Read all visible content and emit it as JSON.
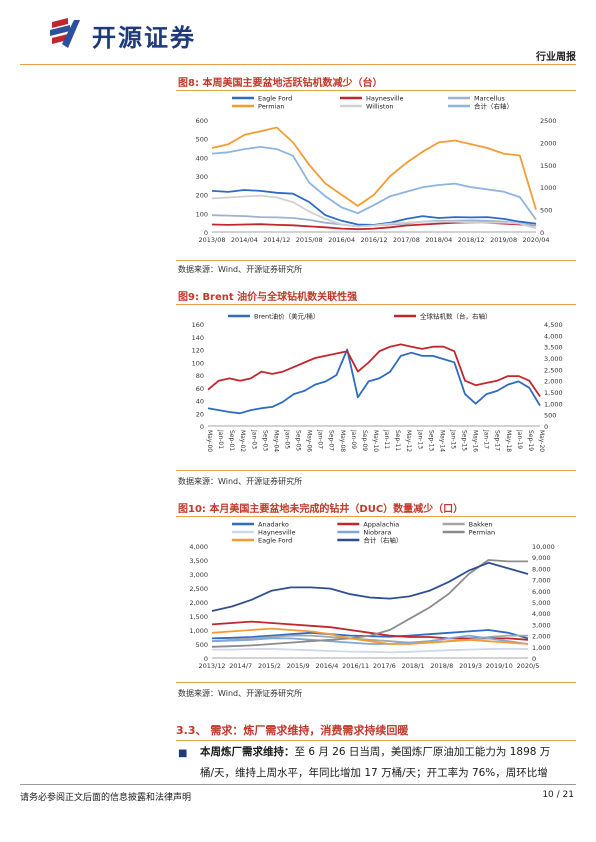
{
  "header": {
    "logo_text": "开源证券",
    "section": "行业周报"
  },
  "figures": [
    {
      "title": "图8: 本周美国主要盆地活跃钻机数减少（台）",
      "source": "数据来源：Wind、开源证券研究所"
    },
    {
      "title": "图9: Brent 油价与全球钻机数关联性强",
      "source": "数据来源：Wind、开源证券研究所"
    },
    {
      "title": "图10: 本月美国主要盆地未完成的钻井（DUC）数量减少（口）",
      "source": "数据来源：Wind、开源证券研究所"
    }
  ],
  "chart_data": [
    {
      "type": "line",
      "x_ticks": [
        "2013/08",
        "2014/04",
        "2014/12",
        "2015/08",
        "2016/04",
        "2016/12",
        "2017/08",
        "2018/04",
        "2018/12",
        "2019/08",
        "2020/04"
      ],
      "y_left_ticks": [
        "0",
        "100",
        "200",
        "300",
        "400",
        "500",
        "600"
      ],
      "y_right_ticks": [
        "0",
        "500",
        "1000",
        "1500",
        "2000",
        "2500"
      ],
      "ylim": [
        0,
        600
      ],
      "ylim_right": [
        0,
        2500
      ],
      "legend": "top",
      "series": [
        {
          "name": "Eagle Ford",
          "color": "#2e6bc2",
          "axis": "left",
          "values": [
            220,
            215,
            225,
            220,
            210,
            205,
            160,
            90,
            60,
            40,
            38,
            50,
            70,
            85,
            75,
            80,
            78,
            80,
            70,
            55,
            45
          ]
        },
        {
          "name": "Haynesville",
          "color": "#c0272d",
          "axis": "left",
          "values": [
            40,
            38,
            40,
            42,
            38,
            36,
            30,
            25,
            18,
            15,
            18,
            25,
            35,
            40,
            45,
            50,
            52,
            50,
            45,
            40,
            35
          ]
        },
        {
          "name": "Marcellus",
          "color": "#9fb0d0",
          "axis": "left",
          "values": [
            90,
            88,
            85,
            80,
            78,
            75,
            65,
            50,
            40,
            30,
            35,
            40,
            45,
            55,
            60,
            60,
            62,
            60,
            55,
            45,
            35
          ]
        },
        {
          "name": "Permian",
          "color": "#f39c36",
          "axis": "left",
          "values": [
            450,
            470,
            520,
            540,
            560,
            480,
            360,
            260,
            200,
            140,
            200,
            300,
            370,
            430,
            480,
            490,
            470,
            450,
            420,
            410,
            120
          ]
        },
        {
          "name": "Williston",
          "color": "#d0d0d0",
          "axis": "left",
          "values": [
            180,
            185,
            190,
            195,
            185,
            160,
            110,
            70,
            40,
            30,
            35,
            45,
            50,
            55,
            55,
            55,
            52,
            50,
            50,
            45,
            20
          ]
        },
        {
          "name": "合计（右轴）",
          "color": "#8fb3e0",
          "axis": "right",
          "values": [
            1750,
            1780,
            1850,
            1900,
            1850,
            1700,
            1100,
            800,
            550,
            420,
            600,
            800,
            900,
            1000,
            1050,
            1080,
            1000,
            950,
            900,
            780,
            280
          ]
        }
      ]
    },
    {
      "type": "line",
      "x_ticks": [
        "May-00",
        "Jan-01",
        "Sep-01",
        "May-02",
        "Jan-03",
        "Sep-03",
        "May-04",
        "Jan-05",
        "Sep-05",
        "May-06",
        "Jan-07",
        "Sep-07",
        "May-08",
        "Jan-09",
        "Sep-09",
        "May-10",
        "Jan-11",
        "Sep-11",
        "May-12",
        "Jan-13",
        "Sep-13",
        "May-14",
        "Jan-15",
        "Sep-15",
        "May-16",
        "Jan-17",
        "Sep-17",
        "May-18",
        "Jan-19",
        "Sep-19",
        "May-20"
      ],
      "y_left_ticks": [
        "0",
        "20",
        "40",
        "60",
        "80",
        "100",
        "120",
        "140",
        "160"
      ],
      "y_right_ticks": [
        "0",
        "500",
        "1,000",
        "1,500",
        "2,000",
        "2,500",
        "3,000",
        "3,500",
        "4,000",
        "4,500"
      ],
      "ylim": [
        0,
        160
      ],
      "ylim_right": [
        0,
        4500
      ],
      "legend": "top",
      "series": [
        {
          "name": "Brent油价（美元/桶）",
          "color": "#2e6bc2",
          "axis": "left",
          "values": [
            28,
            25,
            22,
            20,
            25,
            28,
            30,
            38,
            50,
            55,
            65,
            70,
            80,
            120,
            45,
            70,
            75,
            85,
            110,
            115,
            110,
            110,
            105,
            100,
            50,
            35,
            50,
            55,
            65,
            70,
            60,
            32
          ]
        },
        {
          "name": "全球钻机数（台，右轴）",
          "color": "#c0272d",
          "axis": "right",
          "values": [
            1600,
            2000,
            2100,
            2000,
            2100,
            2400,
            2300,
            2400,
            2600,
            2800,
            3000,
            3100,
            3200,
            3300,
            2400,
            2800,
            3300,
            3500,
            3600,
            3500,
            3400,
            3500,
            3500,
            3300,
            2000,
            1800,
            1900,
            2000,
            2200,
            2200,
            2000,
            1300
          ]
        }
      ]
    },
    {
      "type": "line",
      "x_ticks": [
        "2013/12",
        "2014/7",
        "2015/2",
        "2015/9",
        "2016/4",
        "2016/11",
        "2017/6",
        "2018/1",
        "2018/8",
        "2019/3",
        "2019/10",
        "2020/5"
      ],
      "y_left_ticks": [
        "0",
        "500",
        "1,000",
        "1,500",
        "2,000",
        "2,500",
        "3,000",
        "3,500",
        "4,000"
      ],
      "y_right_ticks": [
        "0",
        "1,000",
        "2,000",
        "3,000",
        "4,000",
        "5,000",
        "6,000",
        "7,000",
        "8,000",
        "9,000",
        "10,000"
      ],
      "ylim": [
        0,
        4000
      ],
      "ylim_right": [
        0,
        10000
      ],
      "legend": "top",
      "series": [
        {
          "name": "Anadarko",
          "color": "#2e6bc2",
          "axis": "left",
          "values": [
            700,
            720,
            750,
            800,
            850,
            900,
            850,
            800,
            780,
            760,
            800,
            850,
            900,
            950,
            1000,
            900,
            700
          ]
        },
        {
          "name": "Appalachia",
          "color": "#c0272d",
          "axis": "left",
          "values": [
            1200,
            1250,
            1300,
            1250,
            1200,
            1150,
            1100,
            1000,
            900,
            800,
            750,
            750,
            700,
            700,
            700,
            700,
            650
          ]
        },
        {
          "name": "Bakken",
          "color": "#a6a6a6",
          "axis": "left",
          "values": [
            600,
            650,
            700,
            750,
            800,
            800,
            750,
            700,
            650,
            600,
            550,
            550,
            600,
            650,
            750,
            800,
            800
          ]
        },
        {
          "name": "Haynesville",
          "color": "#cfd8e8",
          "axis": "left",
          "values": [
            300,
            300,
            320,
            330,
            300,
            280,
            250,
            230,
            220,
            200,
            220,
            250,
            280,
            300,
            320,
            330,
            320
          ]
        },
        {
          "name": "Niobrara",
          "color": "#7fa8d8",
          "axis": "left",
          "values": [
            600,
            620,
            650,
            700,
            700,
            650,
            600,
            550,
            500,
            500,
            550,
            600,
            700,
            800,
            700,
            600,
            500
          ]
        },
        {
          "name": "Permian",
          "color": "#8c8c8c",
          "axis": "left",
          "values": [
            400,
            420,
            450,
            500,
            550,
            600,
            650,
            700,
            800,
            1000,
            1400,
            1800,
            2300,
            3000,
            3500,
            3450,
            3450
          ]
        },
        {
          "name": "Eagle Ford",
          "color": "#f39c36",
          "axis": "left",
          "values": [
            900,
            950,
            1000,
            1050,
            1000,
            950,
            850,
            700,
            600,
            500,
            500,
            550,
            600,
            650,
            600,
            550,
            500
          ]
        },
        {
          "name": "合计（右轴）",
          "color": "#2f4f8f",
          "axis": "right",
          "values": [
            4200,
            4600,
            5200,
            6000,
            6300,
            6300,
            6200,
            5700,
            5400,
            5300,
            5500,
            6000,
            6800,
            7800,
            8500,
            8000,
            7500
          ]
        }
      ]
    }
  ],
  "section": {
    "heading": "3.3、 需求：炼厂需求维持，消费需求持续回暖",
    "bullet_label": "本周炼厂需求维持：",
    "bullet_text_line1": "至 6 月 26 日当周，美国炼厂原油加工能力为 1898 万",
    "bullet_text_line2": "桶/天，维持上周水平，年同比增加 17 万桶/天；开工率为 76%，周环比增"
  },
  "footer": {
    "left": "请务必参阅正文后面的信息披露和法律声明",
    "right": "10 / 21"
  }
}
